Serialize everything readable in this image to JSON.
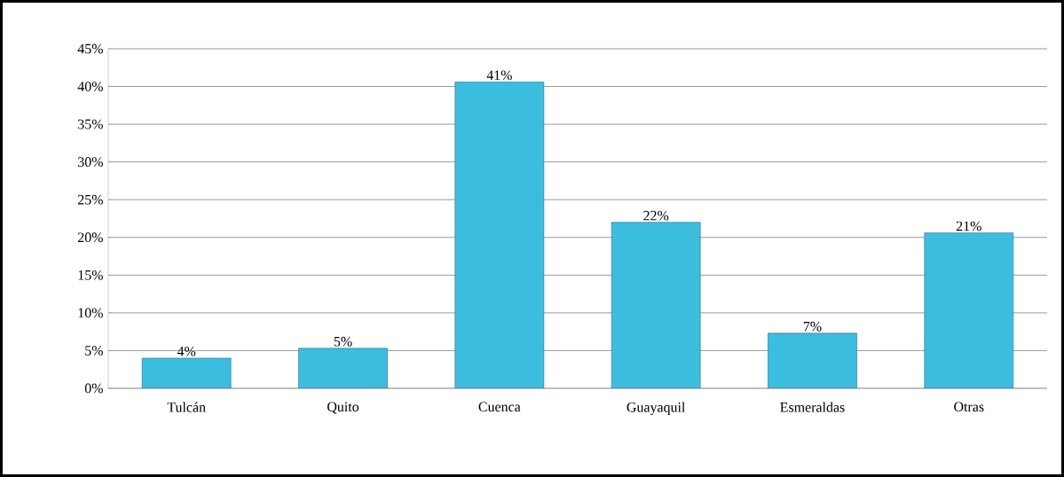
{
  "chart_data": {
    "type": "bar",
    "categories": [
      "Tulcán",
      "Quito",
      "Cuenca",
      "Guayaquil",
      "Esmeraldas",
      "Otras"
    ],
    "values": [
      4,
      5.3,
      40.6,
      22,
      7.3,
      20.6
    ],
    "value_labels": [
      "4%",
      "5%",
      "41%",
      "22%",
      "7%",
      "21%"
    ],
    "color": "#3bbde0",
    "ylim": [
      0,
      45
    ],
    "yticks": [
      {
        "value": 0,
        "label": "0%"
      },
      {
        "value": 5,
        "label": "5%"
      },
      {
        "value": 10,
        "label": "10%"
      },
      {
        "value": 15,
        "label": "15%"
      },
      {
        "value": 20,
        "label": "20%"
      },
      {
        "value": 25,
        "label": "25%"
      },
      {
        "value": 30,
        "label": "30%"
      },
      {
        "value": 35,
        "label": "35%"
      },
      {
        "value": 40,
        "label": "40%"
      },
      {
        "value": 45,
        "label": "45%"
      }
    ],
    "grid": "y"
  }
}
